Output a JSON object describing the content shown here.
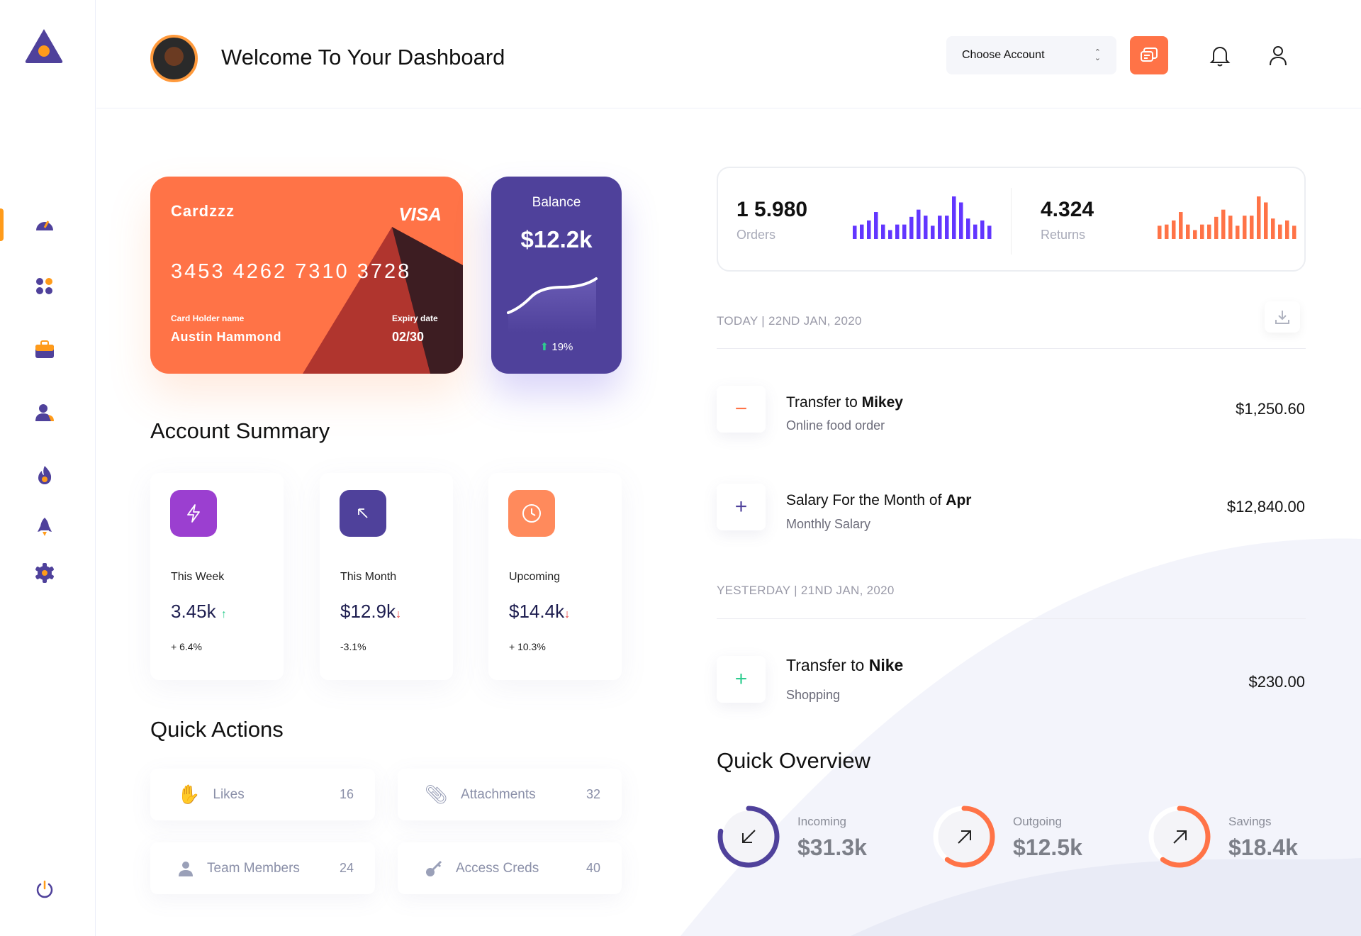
{
  "colors": {
    "primary": "#4f419b",
    "accent": "#ff7347",
    "violet": "#6236ff",
    "green": "#2ecc8f",
    "red": "#e83a3a"
  },
  "header": {
    "title": "Welcome To Your Dashboard",
    "account_select": "Choose Account"
  },
  "sidebar": {
    "items": [
      {
        "icon": "dashboard-gauge-icon",
        "active": true
      },
      {
        "icon": "apps-grid-icon"
      },
      {
        "icon": "briefcase-icon"
      },
      {
        "icon": "users-icon"
      },
      {
        "icon": "fire-icon"
      },
      {
        "icon": "rocket-icon"
      },
      {
        "icon": "settings-gear-icon"
      }
    ],
    "logout_icon": "power-icon"
  },
  "card": {
    "brand": "Cardzzz",
    "network": "VISA",
    "number": "3453 4262 7310 3728",
    "holder_label": "Card Holder name",
    "holder": "Austin Hammond",
    "expiry_label": "Expiry date",
    "expiry": "02/30"
  },
  "balance": {
    "label": "Balance",
    "value": "$12.2k",
    "change": "19%"
  },
  "account_summary": {
    "title": "Account Summary",
    "items": [
      {
        "label": "This Week",
        "value": "3.45k",
        "trend": "up",
        "change": "+ 6.4%",
        "icon": "lightning-icon",
        "color": "#9b3fd0"
      },
      {
        "label": "This Month",
        "value": "$12.9k",
        "trend": "down",
        "change": "-3.1%",
        "icon": "arrow-up-left-icon",
        "color": "#4f419b"
      },
      {
        "label": "Upcoming",
        "value": "$14.4k",
        "trend": "down",
        "change": "+ 10.3%",
        "icon": "clock-icon",
        "color": "#ff8a5c"
      }
    ]
  },
  "quick_actions": {
    "title": "Quick Actions",
    "items": [
      {
        "label": "Likes",
        "count": "16",
        "icon": "hand-icon"
      },
      {
        "label": "Attachments",
        "count": "32",
        "icon": "paperclip-icon"
      },
      {
        "label": "Team Members",
        "count": "24",
        "icon": "user-icon"
      },
      {
        "label": "Access Creds",
        "count": "40",
        "icon": "key-icon"
      }
    ]
  },
  "stats": {
    "orders": {
      "value": "1 5.980",
      "label": "Orders",
      "bars": [
        55,
        60,
        77,
        112,
        60,
        37,
        60,
        60,
        92,
        122,
        97,
        55,
        97,
        97,
        177,
        152,
        85,
        60,
        77,
        55
      ]
    },
    "returns": {
      "value": "4.324",
      "label": "Returns",
      "bars": [
        55,
        60,
        77,
        112,
        60,
        37,
        60,
        60,
        92,
        122,
        97,
        55,
        97,
        97,
        177,
        152,
        85,
        60,
        77,
        55
      ]
    }
  },
  "transactions": {
    "today_label": "TODAY | 22ND JAN, 2020",
    "yesterday_label": "YESTERDAY | 21ND JAN, 2020",
    "today": [
      {
        "prefix": "Transfer to ",
        "bold": "Mikey",
        "sub": "Online food order",
        "amount": "$1,250.60",
        "sign": "−",
        "sign_color": "#ff7347"
      },
      {
        "prefix": "Salary For the Month of ",
        "bold": "Apr",
        "sub": "Monthly Salary",
        "amount": "$12,840.00",
        "sign": "+",
        "sign_color": "#4f419b"
      }
    ],
    "yesterday": [
      {
        "prefix": "Transfer to ",
        "bold": "Nike",
        "sub": "Shopping",
        "amount": "$230.00",
        "sign": "+",
        "sign_color": "#2ecc8f"
      }
    ]
  },
  "quick_overview": {
    "title": "Quick Overview",
    "items": [
      {
        "label": "Incoming",
        "value": "$31.3k",
        "progress": 0.78,
        "color": "#4f419b",
        "icon": "arrow-down-left-icon"
      },
      {
        "label": "Outgoing",
        "value": "$12.5k",
        "progress": 0.6,
        "color": "#ff7347",
        "icon": "arrow-up-right-icon"
      },
      {
        "label": "Savings",
        "value": "$18.4k",
        "progress": 0.6,
        "color": "#ff7347",
        "icon": "arrow-up-right-icon"
      }
    ]
  }
}
